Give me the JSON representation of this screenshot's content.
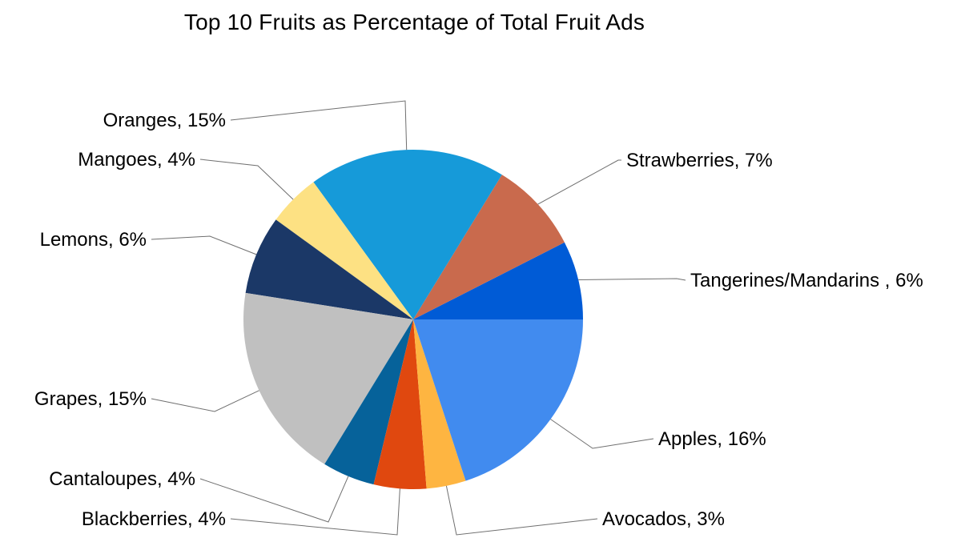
{
  "chart_data": {
    "type": "pie",
    "title": "Top 10 Fruits as Percentage of Total Fruit Ads",
    "start": "3 o'clock",
    "direction": "counterclockwise",
    "categories": [
      "Tangerines/Mandarins ",
      "Strawberries",
      "Oranges",
      "Mangoes",
      "Lemons",
      "Grapes",
      "Cantaloupes",
      "Blackberries",
      "Avocados",
      "Apples"
    ],
    "values": [
      6,
      7,
      15,
      4,
      6,
      15,
      4,
      4,
      3,
      16
    ],
    "labels": [
      "Tangerines/Mandarins , 6%",
      "Strawberries, 7%",
      "Oranges, 15%",
      "Mangoes, 4%",
      "Lemons, 6%",
      "Grapes, 15%",
      "Cantaloupes, 4%",
      "Blackberries, 4%",
      "Avocados, 3%",
      "Apples, 16%"
    ],
    "colors": [
      "#005bd6",
      "#c96a4d",
      "#169ad9",
      "#fde183",
      "#1b3867",
      "#c0c0c0",
      "#06629a",
      "#e0480f",
      "#feb541",
      "#418bef"
    ],
    "legend": "none"
  }
}
